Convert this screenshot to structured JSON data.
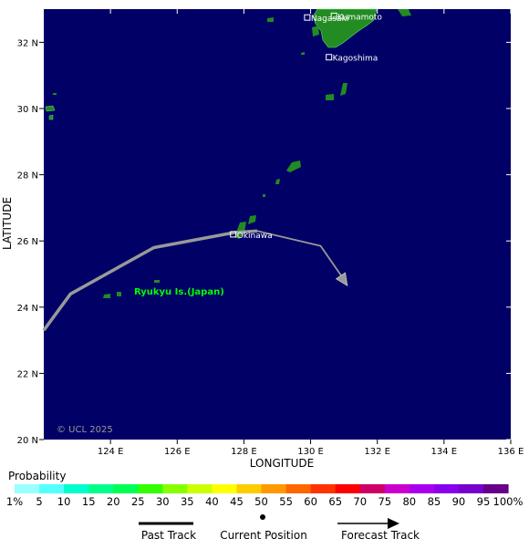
{
  "map": {
    "copyright": "© UCL 2025",
    "xlabel": "LONGITUDE",
    "ylabel": "LATITUDE",
    "lon_ticks": [
      "124 E",
      "126 E",
      "128 E",
      "130 E",
      "132 E",
      "134 E",
      "136 E"
    ],
    "lat_ticks": [
      "32 N",
      "30 N",
      "28 N",
      "26 N",
      "24 N",
      "22 N",
      "20 N"
    ],
    "region_label": "Ryukyu Is.(Japan)",
    "cities": [
      {
        "name": "Nagasaki",
        "lon": 129.9,
        "lat": 32.75
      },
      {
        "name": "Kumamoto",
        "lon": 130.7,
        "lat": 32.8
      },
      {
        "name": "Kagoshima",
        "lon": 130.55,
        "lat": 31.55
      },
      {
        "name": "Okinawa",
        "lon": 127.68,
        "lat": 26.2
      }
    ],
    "past_track": [
      [
        122.0,
        23.3
      ],
      [
        122.8,
        24.4
      ],
      [
        125.3,
        25.8
      ],
      [
        127.7,
        26.25
      ],
      [
        128.4,
        26.3
      ]
    ],
    "forecast_track": [
      [
        128.4,
        26.3
      ],
      [
        130.3,
        25.85
      ],
      [
        131.1,
        24.65
      ]
    ],
    "colors": {
      "ocean": "#000066",
      "land": "#228B22",
      "track": "#999999",
      "label": "#00ff00"
    }
  },
  "legend": {
    "probability_title": "Probability",
    "levels": [
      "1%",
      "5",
      "10",
      "15",
      "20",
      "25",
      "30",
      "35",
      "40",
      "45",
      "50",
      "55",
      "60",
      "65",
      "70",
      "75",
      "80",
      "85",
      "90",
      "95",
      "100%"
    ],
    "colors": [
      "#99ffff",
      "#55ffff",
      "#00ffcc",
      "#00ff88",
      "#00ff55",
      "#33ff00",
      "#88ff00",
      "#ccff00",
      "#ffff00",
      "#ffcc00",
      "#ff9900",
      "#ff6600",
      "#ff3300",
      "#ff0000",
      "#cc0066",
      "#cc00cc",
      "#aa00ee",
      "#8800ee",
      "#7700cc",
      "#660088"
    ],
    "past_track_label": "Past Track",
    "current_position_label": "Current Position",
    "forecast_track_label": "Forecast Track"
  }
}
